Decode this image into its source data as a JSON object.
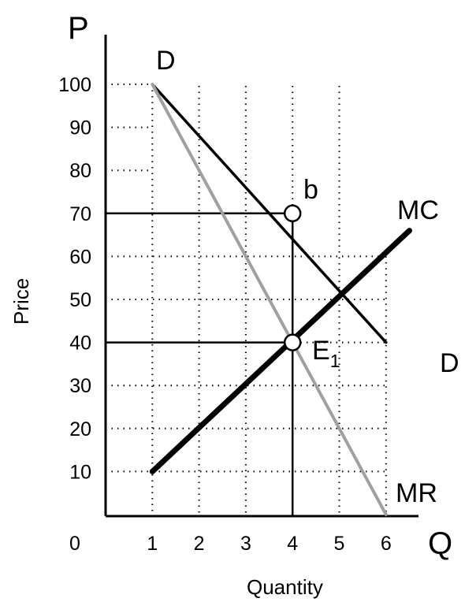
{
  "chart_data": {
    "type": "line",
    "title": "",
    "xlabel": "Quantity",
    "ylabel": "Price",
    "x_axis_letter": "Q",
    "y_axis_letter": "P",
    "origin_label": "0",
    "xlim": [
      0,
      7.1
    ],
    "ylim": [
      -0.5,
      111
    ],
    "x_ticks": [
      1,
      2,
      3,
      4,
      5,
      6
    ],
    "y_ticks": [
      10,
      20,
      30,
      40,
      50,
      60,
      70,
      80,
      90,
      100
    ],
    "grid": true,
    "series": [
      {
        "name": "D",
        "style": "black",
        "points": [
          [
            1,
            100
          ],
          [
            6,
            40
          ]
        ]
      },
      {
        "name": "MR",
        "style": "gray",
        "points": [
          [
            1,
            100
          ],
          [
            6,
            0
          ]
        ]
      },
      {
        "name": "MC",
        "style": "black-thick",
        "points": [
          [
            1,
            10
          ],
          [
            6.5,
            66
          ]
        ]
      }
    ],
    "labels": {
      "demand_start": "D",
      "demand_end": "D",
      "mc": "MC",
      "mr": "MR",
      "point_b": "b",
      "point_e_main": "E",
      "point_e_sub": "1"
    },
    "points": [
      {
        "name": "b",
        "x": 4,
        "y": 70
      },
      {
        "name": "E1",
        "x": 4,
        "y": 40
      }
    ],
    "colors": {
      "black": "#000000",
      "gray": "#a0a0a0",
      "grid": "#000000"
    }
  }
}
